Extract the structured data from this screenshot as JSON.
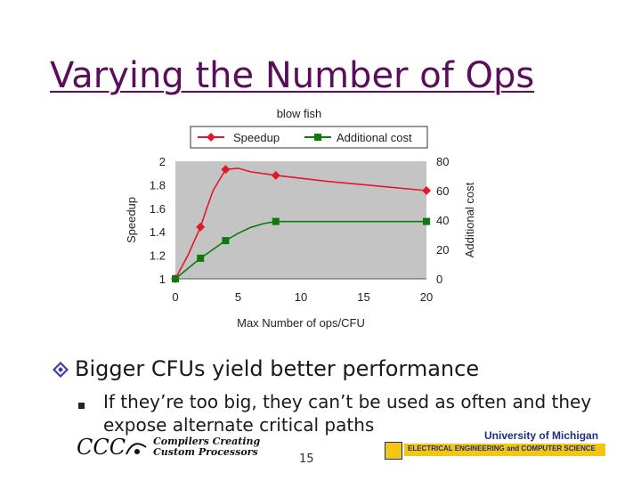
{
  "slide": {
    "title": "Varying the Number of Ops",
    "bullet_main": "Bigger CFUs yield better performance",
    "bullet_sub": "If they’re too big, they can’t be used as often and they expose alternate critical paths",
    "page_number": "15",
    "footer_left": {
      "logo_text": "CCC",
      "line1": "Compilers Creating",
      "line2": "Custom Processors"
    },
    "footer_right": {
      "university": "University of Michigan",
      "department": "ELECTRICAL ENGINEERING and COMPUTER SCIENCE"
    },
    "colors": {
      "title": "#5a0d5a",
      "speedup": "#e0192a",
      "additional_cost": "#0d7a0d",
      "plot_bg": "#c4c4c4",
      "umich_gold": "#f3c514",
      "umich_blue": "#1f2f7a"
    }
  },
  "chart_data": {
    "type": "line",
    "title": "blow fish",
    "xlabel": "Max Number of ops/CFU",
    "ylabel": "Speedup",
    "y2label": "Additional cost",
    "xlim": [
      0,
      20
    ],
    "ylim": [
      1,
      2
    ],
    "y2lim": [
      0,
      80
    ],
    "xticks": [
      0,
      5,
      10,
      15,
      20
    ],
    "yticks": [
      1,
      1.2,
      1.4,
      1.6,
      1.8,
      2
    ],
    "y2ticks": [
      0,
      20,
      40,
      60,
      80
    ],
    "legend": "top",
    "series": [
      {
        "name": "Speedup",
        "axis": "left",
        "marker": "diamond",
        "points": [
          [
            0,
            1.0
          ],
          [
            2,
            1.44
          ],
          [
            4,
            1.93
          ],
          [
            8,
            1.88
          ],
          [
            20,
            1.75
          ]
        ],
        "curve": [
          [
            0,
            1.0
          ],
          [
            1,
            1.2
          ],
          [
            2,
            1.44
          ],
          [
            2.5,
            1.6
          ],
          [
            3,
            1.75
          ],
          [
            3.5,
            1.84
          ],
          [
            4,
            1.93
          ],
          [
            5,
            1.94
          ],
          [
            6,
            1.91
          ],
          [
            8,
            1.88
          ],
          [
            12,
            1.83
          ],
          [
            16,
            1.79
          ],
          [
            20,
            1.75
          ]
        ]
      },
      {
        "name": "Additional cost",
        "axis": "right",
        "marker": "square",
        "points": [
          [
            0,
            0
          ],
          [
            2,
            14
          ],
          [
            4,
            26
          ],
          [
            8,
            39
          ],
          [
            20,
            39
          ]
        ],
        "curve": [
          [
            0,
            0
          ],
          [
            1,
            7
          ],
          [
            2,
            14
          ],
          [
            3,
            20
          ],
          [
            4,
            26
          ],
          [
            5,
            31
          ],
          [
            6,
            35
          ],
          [
            7,
            37.5
          ],
          [
            8,
            39
          ],
          [
            12,
            39
          ],
          [
            16,
            39
          ],
          [
            20,
            39
          ]
        ]
      }
    ]
  }
}
